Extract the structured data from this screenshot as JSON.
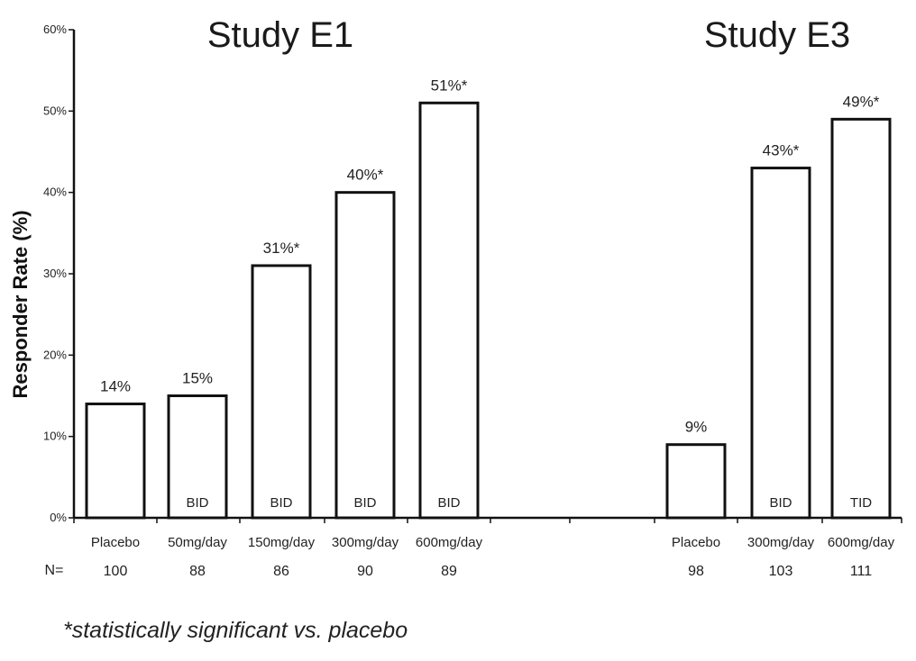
{
  "chart_data": {
    "type": "bar",
    "ylabel": "Responder Rate (%)",
    "ylim": [
      0,
      60
    ],
    "yticks": [
      0,
      10,
      20,
      30,
      40,
      50,
      60
    ],
    "ytick_labels": [
      "0%",
      "10%",
      "20%",
      "30%",
      "40%",
      "50%",
      "60%"
    ],
    "n_prefix": "N=",
    "grid": false,
    "groups": [
      {
        "title": "Study E1",
        "categories": [
          "Placebo",
          "50mg/day",
          "150mg/day",
          "300mg/day",
          "600mg/day"
        ],
        "values": [
          14,
          15,
          31,
          40,
          51
        ],
        "value_labels": [
          "14%",
          "15%",
          "31%*",
          "40%*",
          "51%*"
        ],
        "dosing": [
          "",
          "BID",
          "BID",
          "BID",
          "BID"
        ],
        "n": [
          "100",
          "88",
          "86",
          "90",
          "89"
        ]
      },
      {
        "title": "Study E3",
        "categories": [
          "Placebo",
          "300mg/day",
          "600mg/day"
        ],
        "values": [
          9,
          43,
          49
        ],
        "value_labels": [
          "9%",
          "43%*",
          "49%*"
        ],
        "dosing": [
          "",
          "BID",
          "TID"
        ],
        "n": [
          "98",
          "103",
          "111"
        ]
      }
    ]
  },
  "footnote": "*statistically significant vs. placebo"
}
